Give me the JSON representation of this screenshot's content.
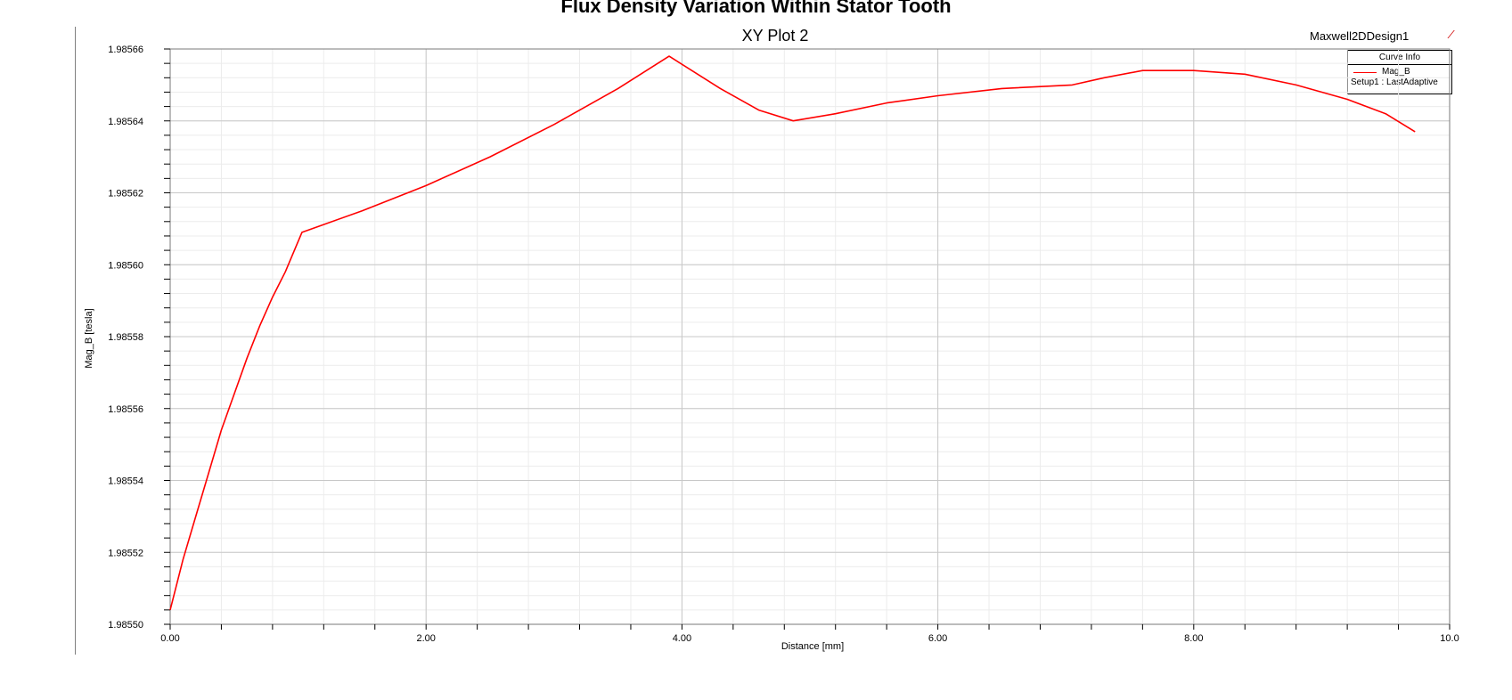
{
  "figure": {
    "suptitle": "Flux Density Variation Within Stator Tooth",
    "design_name": "Maxwell2DDesign1",
    "logo_mark": "∕"
  },
  "chart_data": {
    "type": "line",
    "title": "XY Plot 2",
    "xlabel": "Distance [mm]",
    "ylabel": "Mag_B [tesla]",
    "xlim": [
      0,
      10
    ],
    "ylim": [
      1.9855,
      1.98566
    ],
    "x_ticks": [
      0,
      2,
      4,
      6,
      8,
      10
    ],
    "x_tick_labels": [
      "0.00",
      "2.00",
      "4.00",
      "6.00",
      "8.00",
      "10.0"
    ],
    "y_ticks": [
      1.9855,
      1.98552,
      1.98554,
      1.98556,
      1.98558,
      1.9856,
      1.98562,
      1.98564,
      1.98566
    ],
    "y_tick_labels": [
      "1.98550",
      "1.98552",
      "1.98554",
      "1.98556",
      "1.98558",
      "1.98560",
      "1.98562",
      "1.98564",
      "1.98566"
    ],
    "grid": true,
    "legend": {
      "title": "Curve Info",
      "placement": "top-right",
      "entries": [
        {
          "name": "Mag_B",
          "detail": "Setup1 : LastAdaptive"
        }
      ]
    },
    "series": [
      {
        "name": "Mag_B",
        "color": "#ff0000",
        "x": [
          0.0,
          0.1,
          0.2,
          0.3,
          0.4,
          0.5,
          0.6,
          0.7,
          0.8,
          0.9,
          1.03,
          1.5,
          2.0,
          2.5,
          3.0,
          3.5,
          3.9,
          4.3,
          4.6,
          4.87,
          5.2,
          5.6,
          6.0,
          6.5,
          7.05,
          7.3,
          7.6,
          8.0,
          8.4,
          8.8,
          9.2,
          9.5,
          9.73
        ],
        "y": [
          1.985504,
          1.985518,
          1.98553,
          1.985542,
          1.985554,
          1.985564,
          1.985574,
          1.985583,
          1.985591,
          1.985598,
          1.985609,
          1.985615,
          1.985622,
          1.98563,
          1.985639,
          1.985649,
          1.985658,
          1.985649,
          1.985643,
          1.98564,
          1.985642,
          1.985645,
          1.985647,
          1.985649,
          1.98565,
          1.985652,
          1.985654,
          1.985654,
          1.985653,
          1.98565,
          1.985646,
          1.985642,
          1.985637
        ]
      }
    ]
  }
}
